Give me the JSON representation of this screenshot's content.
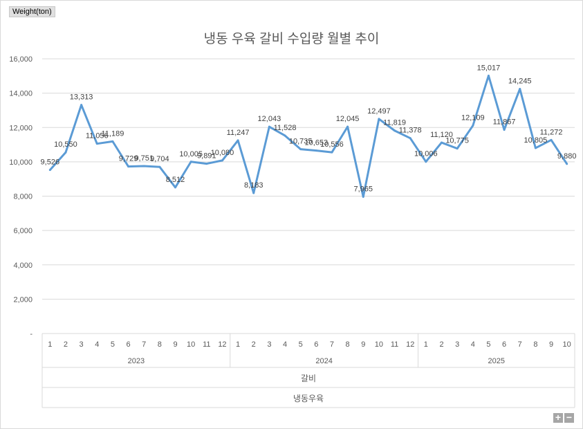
{
  "ui": {
    "y_field_button": "Weight(ton)",
    "zoom_in": "+",
    "zoom_out": "−"
  },
  "chart_data": {
    "type": "line",
    "title": "냉동 우육 갈비 수입량 월별 추이",
    "ylabel": "Weight(ton)",
    "ylim": [
      0,
      16000
    ],
    "yticks": [
      "-",
      "2,000",
      "4,000",
      "6,000",
      "8,000",
      "10,000",
      "12,000",
      "14,000",
      "16,000"
    ],
    "grid": true,
    "line_color": "#5b9bd5",
    "years": [
      {
        "label": "2023",
        "months": [
          "1",
          "2",
          "3",
          "4",
          "5",
          "6",
          "7",
          "8",
          "9",
          "10",
          "11",
          "12"
        ]
      },
      {
        "label": "2024",
        "months": [
          "1",
          "2",
          "3",
          "4",
          "5",
          "6",
          "7",
          "8",
          "9",
          "10",
          "11",
          "12"
        ]
      },
      {
        "label": "2025",
        "months": [
          "1",
          "2",
          "3",
          "4",
          "5",
          "6",
          "7",
          "8",
          "9",
          "10"
        ]
      }
    ],
    "values": [
      9526,
      10550,
      13313,
      11056,
      11189,
      9729,
      9751,
      9704,
      8512,
      10005,
      9891,
      10080,
      11247,
      8183,
      12043,
      11528,
      10735,
      10653,
      10556,
      12045,
      7965,
      12497,
      11819,
      11378,
      10006,
      11120,
      10775,
      12109,
      15017,
      11867,
      14245,
      10805,
      11272,
      9880
    ],
    "labels": [
      "9,526",
      "10,550",
      "13,313",
      "11,056",
      "11,189",
      "9,729",
      "9,751",
      "9,704",
      "8,512",
      "10,005",
      "9,891",
      "10,080",
      "11,247",
      "8,183",
      "12,043",
      "11,528",
      "10,735",
      "10,653",
      "10,556",
      "12,045",
      "7,965",
      "12,497",
      "11,819",
      "11,378",
      "10,006",
      "11,120",
      "10,775",
      "12,109",
      "15,017",
      "11,867",
      "14,245",
      "10,805",
      "11,272",
      "9,880"
    ],
    "category_level2": "갈비",
    "category_level3": "냉동우육"
  }
}
